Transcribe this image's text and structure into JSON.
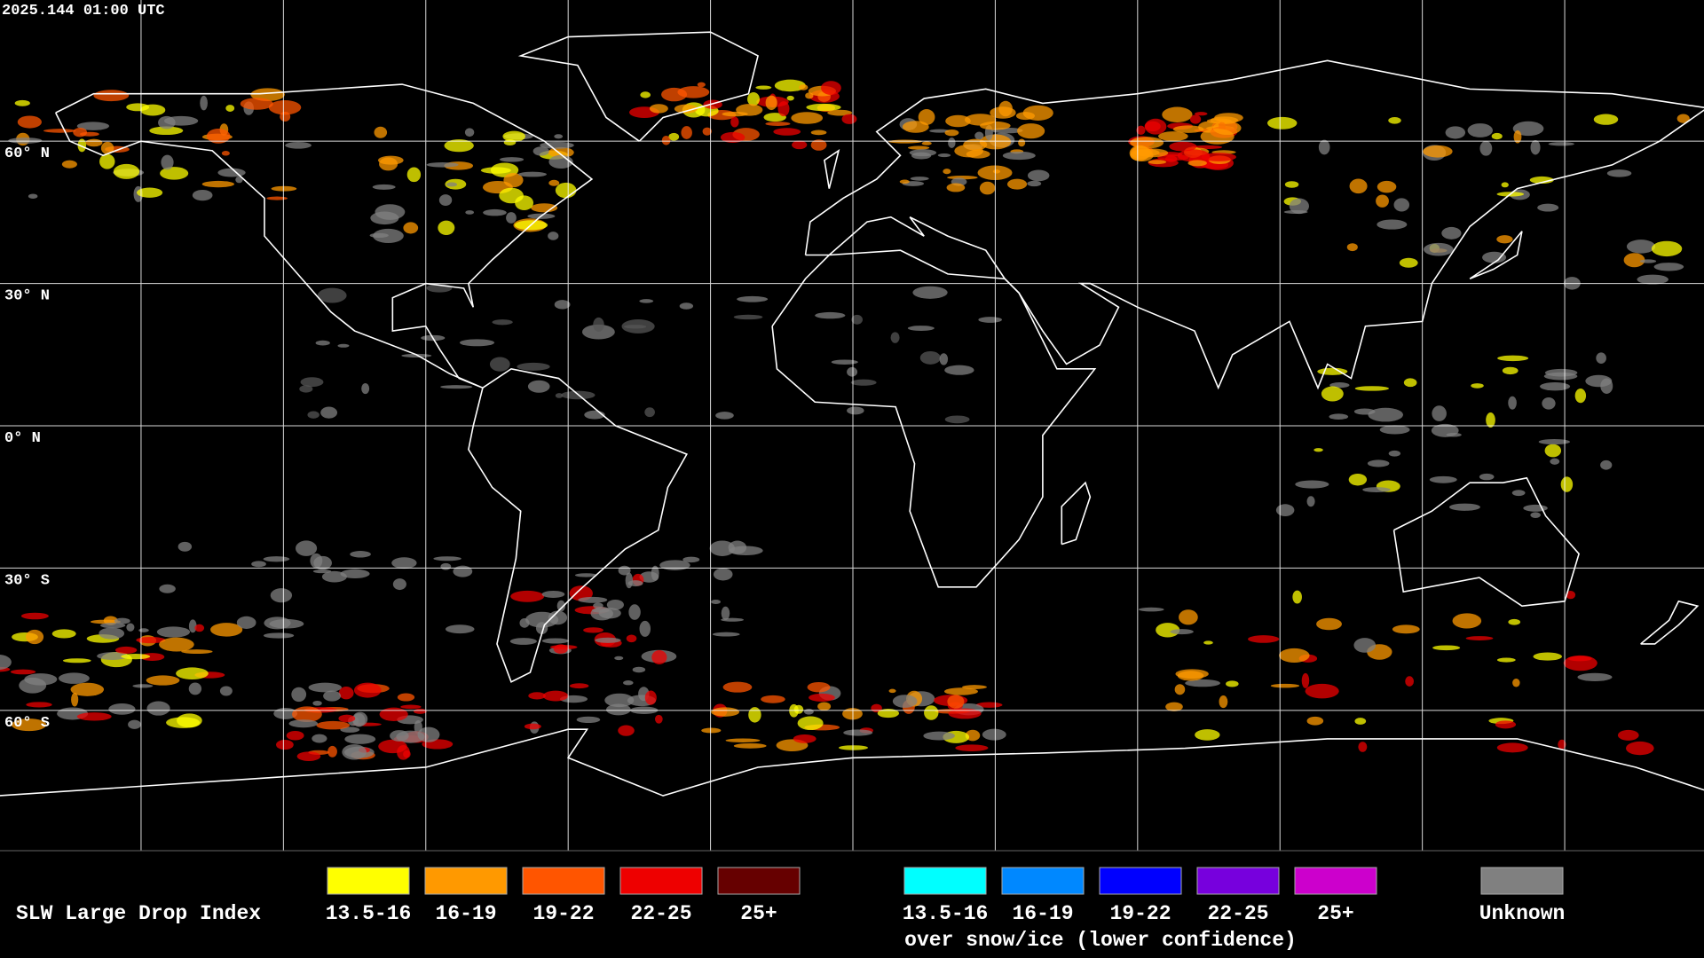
{
  "header": {
    "timestamp": "2025.144 01:00 UTC"
  },
  "map": {
    "lat_labels": [
      "60° N",
      "30° N",
      "0° N",
      "30° S",
      "60° S"
    ]
  },
  "legend": {
    "title": "SLW Large Drop Index",
    "items": [
      {
        "label": "13.5-16",
        "color": "#ffff00"
      },
      {
        "label": "16-19",
        "color": "#ff9900"
      },
      {
        "label": "19-22",
        "color": "#ff5500"
      },
      {
        "label": "22-25",
        "color": "#ee0000"
      },
      {
        "label": "25+",
        "color": "#660000"
      }
    ],
    "snow_items": [
      {
        "label": "13.5-16",
        "color": "#00ffff"
      },
      {
        "label": "16-19",
        "color": "#0088ff"
      },
      {
        "label": "19-22",
        "color": "#0000ff"
      },
      {
        "label": "22-25",
        "color": "#7700dd"
      },
      {
        "label": "25+",
        "color": "#cc00cc"
      }
    ],
    "snow_caption": "over snow/ice (lower confidence)",
    "unknown": {
      "label": "Unknown",
      "color": "#808080"
    }
  }
}
